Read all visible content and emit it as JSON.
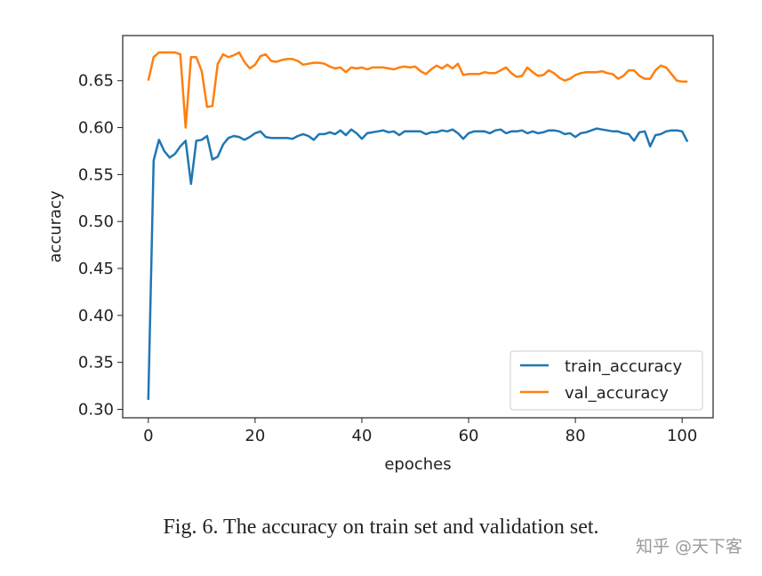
{
  "chart_data": {
    "type": "line",
    "xlabel": "epoches",
    "ylabel": "accuracy",
    "xlim": [
      -4.8,
      105.8
    ],
    "ylim": [
      0.291,
      0.698
    ],
    "xticks": [
      0,
      20,
      40,
      60,
      80,
      100
    ],
    "yticks": [
      0.3,
      0.35,
      0.4,
      0.45,
      0.5,
      0.55,
      0.6,
      0.65
    ],
    "grid": false,
    "legend_position": "lower-right",
    "series": [
      {
        "name": "train_accuracy",
        "color": "#1f77b4",
        "values": [
          0.31,
          0.565,
          0.587,
          0.575,
          0.568,
          0.572,
          0.58,
          0.586,
          0.54,
          0.586,
          0.587,
          0.591,
          0.566,
          0.569,
          0.582,
          0.589,
          0.591,
          0.59,
          0.587,
          0.59,
          0.594,
          0.596,
          0.59,
          0.589,
          0.589,
          0.589,
          0.589,
          0.588,
          0.591,
          0.593,
          0.591,
          0.587,
          0.593,
          0.593,
          0.595,
          0.593,
          0.597,
          0.592,
          0.598,
          0.594,
          0.588,
          0.594,
          0.595,
          0.596,
          0.597,
          0.595,
          0.596,
          0.592,
          0.596,
          0.596,
          0.596,
          0.596,
          0.593,
          0.595,
          0.595,
          0.597,
          0.596,
          0.598,
          0.594,
          0.588,
          0.594,
          0.596,
          0.596,
          0.596,
          0.594,
          0.597,
          0.598,
          0.594,
          0.596,
          0.596,
          0.597,
          0.594,
          0.596,
          0.594,
          0.595,
          0.597,
          0.597,
          0.596,
          0.593,
          0.594,
          0.59,
          0.594,
          0.595,
          0.597,
          0.599,
          0.598,
          0.597,
          0.596,
          0.596,
          0.594,
          0.593,
          0.586,
          0.595,
          0.596,
          0.58,
          0.592,
          0.593,
          0.596,
          0.597,
          0.597,
          0.596,
          0.585
        ]
      },
      {
        "name": "val_accuracy",
        "color": "#ff7f0e",
        "values": [
          0.65,
          0.675,
          0.68,
          0.68,
          0.68,
          0.68,
          0.678,
          0.6,
          0.675,
          0.675,
          0.66,
          0.622,
          0.623,
          0.668,
          0.678,
          0.675,
          0.677,
          0.68,
          0.67,
          0.663,
          0.667,
          0.676,
          0.678,
          0.671,
          0.67,
          0.672,
          0.673,
          0.673,
          0.671,
          0.667,
          0.668,
          0.669,
          0.669,
          0.668,
          0.665,
          0.663,
          0.664,
          0.659,
          0.664,
          0.663,
          0.664,
          0.662,
          0.664,
          0.664,
          0.664,
          0.663,
          0.662,
          0.664,
          0.665,
          0.664,
          0.665,
          0.66,
          0.657,
          0.662,
          0.666,
          0.663,
          0.667,
          0.663,
          0.668,
          0.656,
          0.657,
          0.657,
          0.657,
          0.659,
          0.658,
          0.658,
          0.661,
          0.664,
          0.658,
          0.654,
          0.655,
          0.664,
          0.659,
          0.655,
          0.656,
          0.661,
          0.658,
          0.653,
          0.65,
          0.652,
          0.656,
          0.658,
          0.659,
          0.659,
          0.659,
          0.66,
          0.658,
          0.657,
          0.652,
          0.655,
          0.661,
          0.661,
          0.655,
          0.652,
          0.652,
          0.661,
          0.666,
          0.664,
          0.657,
          0.65,
          0.649,
          0.649
        ]
      }
    ]
  },
  "caption": "Fig. 6.  The accuracy on train set and validation set.",
  "watermark": "知乎 @天下客"
}
